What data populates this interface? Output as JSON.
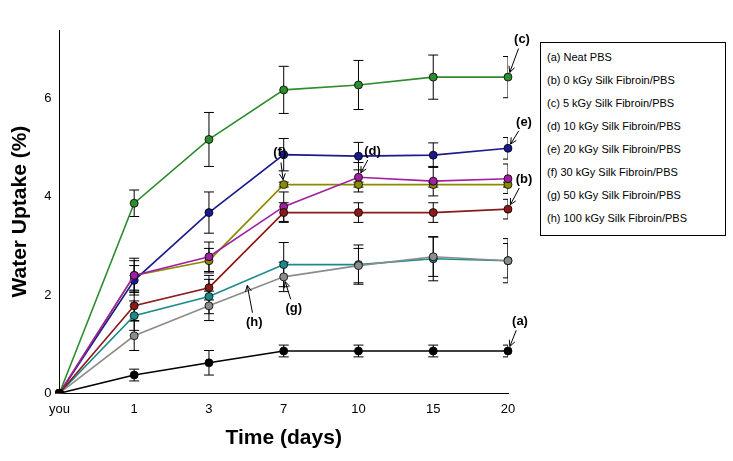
{
  "chart_data": {
    "type": "line",
    "x_label": "Time (days)",
    "y_label": "Water Uptake (%)",
    "categories": [
      "you",
      "1",
      "3",
      "7",
      "10",
      "15",
      "20"
    ],
    "ylim": [
      0,
      7.4
    ],
    "yticks": [
      0,
      2,
      4,
      6
    ],
    "grid": false,
    "legend": "right",
    "marker": "circle",
    "series": [
      {
        "name": "(a) Neat PBS",
        "color": "#000000",
        "values": [
          0,
          0.37,
          0.62,
          0.86,
          0.86,
          0.86,
          0.86
        ],
        "errors": [
          0,
          0.12,
          0.25,
          0.12,
          0.12,
          0.12,
          0.12
        ]
      },
      {
        "name": "(b) 0 kGy Silk Fibroin/PBS",
        "color": "#8b1a1a",
        "values": [
          0,
          1.78,
          2.15,
          3.68,
          3.68,
          3.68,
          3.75
        ],
        "errors": [
          0,
          0.3,
          0.25,
          0.2,
          0.2,
          0.2,
          0.2
        ]
      },
      {
        "name": "(c) 5 kGy Silk Fibroin/PBS",
        "color": "#2e8b2e",
        "values": [
          0,
          3.87,
          5.17,
          6.18,
          6.28,
          6.44,
          6.44
        ],
        "errors": [
          0,
          0.27,
          0.55,
          0.48,
          0.5,
          0.45,
          0.42
        ]
      },
      {
        "name": "(d) 10 kGy Silk Fibroin/PBS",
        "color": "#a020a0",
        "values": [
          0,
          2.4,
          2.78,
          3.8,
          4.4,
          4.32,
          4.37
        ],
        "errors": [
          0,
          0.35,
          0.3,
          0.3,
          0.3,
          0.3,
          0.3
        ]
      },
      {
        "name": "(e) 20 kGy Silk Fibroin/PBS",
        "color": "#1a1a8b",
        "values": [
          0,
          2.3,
          3.68,
          4.86,
          4.83,
          4.85,
          4.99
        ],
        "errors": [
          0,
          0.3,
          0.42,
          0.33,
          0.28,
          0.25,
          0.22
        ]
      },
      {
        "name": "(f) 30 kGy Silk Fibroin/PBS",
        "color": "#8b8b00",
        "values": [
          0,
          2.4,
          2.7,
          4.25,
          4.25,
          4.25,
          4.25
        ],
        "errors": [
          0,
          0.3,
          0.25,
          0.05,
          0.05,
          0.05,
          0.05
        ]
      },
      {
        "name": "(g) 50 kGy Silk Fibroin/PBS",
        "color": "#8c8c8c",
        "values": [
          0,
          1.17,
          1.78,
          2.37,
          2.6,
          2.78,
          2.7
        ],
        "errors": [
          0,
          0.3,
          0.3,
          0.3,
          0.35,
          0.4,
          0.35
        ]
      },
      {
        "name": "(h) 100 kGy Silk Fibroin/PBS",
        "color": "#1a8b8b",
        "values": [
          0,
          1.58,
          1.97,
          2.62,
          2.62,
          2.74,
          2.7
        ],
        "errors": [
          0,
          0.3,
          0.35,
          0.45,
          0.4,
          0.45,
          0.45
        ]
      }
    ],
    "annotations": [
      {
        "text": "(a)",
        "series": "(a) Neat PBS"
      },
      {
        "text": "(b)",
        "series": "(b) 0 kGy Silk Fibroin/PBS"
      },
      {
        "text": "(c)",
        "series": "(c) 5 kGy Silk Fibroin/PBS"
      },
      {
        "text": "(d)",
        "series": "(d) 10 kGy Silk Fibroin/PBS"
      },
      {
        "text": "(e)",
        "series": "(e) 20 kGy Silk Fibroin/PBS"
      },
      {
        "text": "(f)",
        "series": "(f) 30 kGy Silk Fibroin/PBS"
      },
      {
        "text": "(g)",
        "series": "(g) 50 kGy Silk Fibroin/PBS"
      },
      {
        "text": "(h)",
        "series": "(h) 100 kGy Silk Fibroin/PBS"
      }
    ]
  }
}
